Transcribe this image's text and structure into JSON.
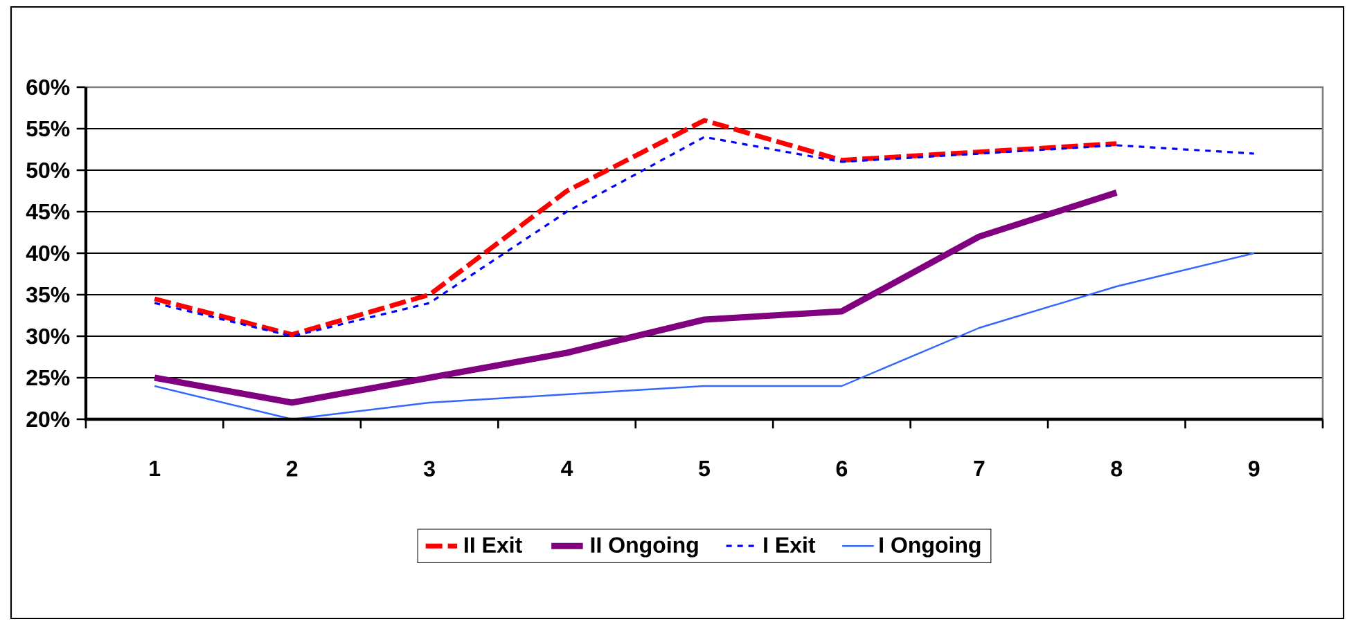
{
  "chart_data": {
    "type": "line",
    "categories": [
      "1",
      "2",
      "3",
      "4",
      "5",
      "6",
      "7",
      "8",
      "9"
    ],
    "series": [
      {
        "name": "II Exit",
        "color": "#ff0000",
        "line_style": "dashed",
        "values": [
          34.5,
          30.2,
          35,
          47.5,
          56,
          51.2,
          52.2,
          53.2,
          null
        ]
      },
      {
        "name": "II Ongoing",
        "color": "#800080",
        "line_style": "solid",
        "values": [
          25,
          22,
          25,
          28,
          32,
          33,
          42,
          47.3,
          null
        ]
      },
      {
        "name": "I Exit",
        "color": "#0000ff",
        "line_style": "dotted",
        "values": [
          34,
          30,
          34,
          45,
          54,
          51,
          52,
          53,
          52
        ]
      },
      {
        "name": "I Ongoing",
        "color": "#3366ff",
        "line_style": "solid",
        "values": [
          24,
          20,
          22,
          23,
          24,
          24,
          31,
          36,
          40
        ]
      }
    ],
    "ylim": [
      20,
      60
    ],
    "yticks": [
      {
        "value": 20,
        "label": "20%"
      },
      {
        "value": 25,
        "label": "25%"
      },
      {
        "value": 30,
        "label": "30%"
      },
      {
        "value": 35,
        "label": "35%"
      },
      {
        "value": 40,
        "label": "40%"
      },
      {
        "value": 45,
        "label": "45%"
      },
      {
        "value": 50,
        "label": "50%"
      },
      {
        "value": 55,
        "label": "55%"
      },
      {
        "value": 60,
        "label": "60%"
      }
    ],
    "grid": "y",
    "legend": "bottom",
    "marker": "none"
  }
}
